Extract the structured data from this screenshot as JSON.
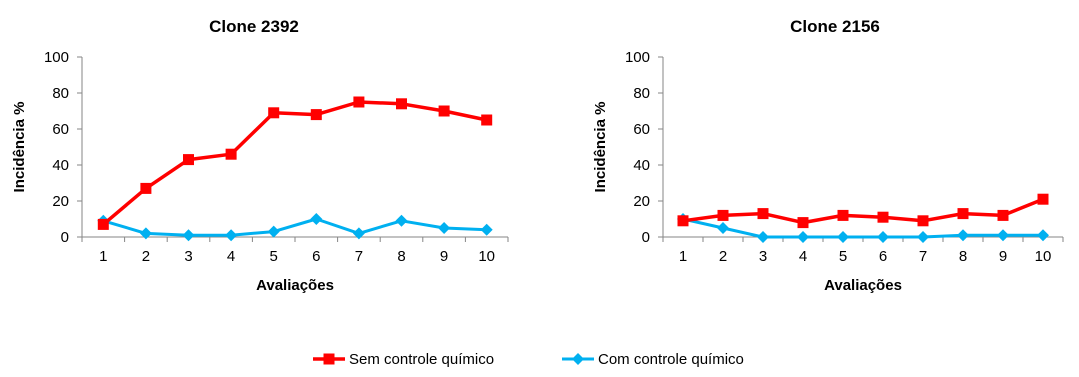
{
  "chart_data": [
    {
      "type": "line",
      "title": "Clone 2392",
      "xlabel": "Avaliações",
      "ylabel": "Incidência %",
      "ylim": [
        0,
        100
      ],
      "yticks": [
        0,
        20,
        40,
        60,
        80,
        100
      ],
      "x": [
        "1",
        "2",
        "3",
        "4",
        "5",
        "6",
        "7",
        "8",
        "9",
        "10"
      ],
      "series": [
        {
          "name": "Sem controle químico",
          "color": "#ff0000",
          "marker": "square",
          "values": [
            7,
            27,
            43,
            46,
            69,
            68,
            75,
            74,
            70,
            65
          ]
        },
        {
          "name": "Com controle químico",
          "color": "#00b0f0",
          "marker": "diamond",
          "values": [
            9,
            2,
            1,
            1,
            3,
            10,
            2,
            9,
            5,
            4
          ]
        }
      ],
      "grid": false
    },
    {
      "type": "line",
      "title": "Clone 2156",
      "xlabel": "Avaliações",
      "ylabel": "Incidência %",
      "ylim": [
        0,
        100
      ],
      "yticks": [
        0,
        20,
        40,
        60,
        80,
        100
      ],
      "x": [
        "1",
        "2",
        "3",
        "4",
        "5",
        "6",
        "7",
        "8",
        "9",
        "10"
      ],
      "series": [
        {
          "name": "Sem controle químico",
          "color": "#ff0000",
          "marker": "square",
          "values": [
            9,
            12,
            13,
            8,
            12,
            11,
            9,
            13,
            12,
            21
          ]
        },
        {
          "name": "Com controle químico",
          "color": "#00b0f0",
          "marker": "diamond",
          "values": [
            10,
            5,
            0,
            0,
            0,
            0,
            0,
            1,
            1,
            1
          ]
        }
      ],
      "grid": false
    }
  ],
  "legend": {
    "placement": "bottom-center",
    "items": [
      {
        "label": "Sem controle químico",
        "color": "#ff0000",
        "marker": "square"
      },
      {
        "label": "Com controle químico",
        "color": "#00b0f0",
        "marker": "diamond"
      }
    ]
  }
}
